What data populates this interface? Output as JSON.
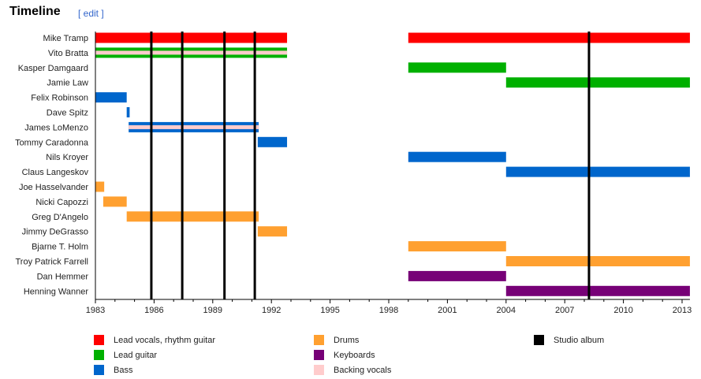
{
  "section": {
    "title": "Timeline",
    "edit_label": "[ edit ]"
  },
  "chart_data": {
    "type": "timeline",
    "xlim": [
      1983,
      2013.4
    ],
    "xticks": [
      1983,
      1986,
      1989,
      1992,
      1995,
      1998,
      2001,
      2004,
      2007,
      2010,
      2013
    ],
    "roles": {
      "vocals": {
        "label": "Lead vocals, rhythm guitar",
        "color": "#ff0000"
      },
      "guitar": {
        "label": "Lead guitar",
        "color": "#00b000"
      },
      "bass": {
        "label": "Bass",
        "color": "#0066cc"
      },
      "drums": {
        "label": "Drums",
        "color": "#ffa030"
      },
      "keys": {
        "label": "Keyboards",
        "color": "#770077"
      },
      "backing": {
        "label": "Backing vocals",
        "color": "#ffcccc"
      },
      "album": {
        "label": "Studio album",
        "color": "#000000"
      }
    },
    "members": [
      {
        "name": "Mike Tramp",
        "bars": [
          {
            "role": "vocals",
            "from": 1983,
            "to": 1992.8
          },
          {
            "role": "vocals",
            "from": 1999,
            "to": 2013.4
          }
        ]
      },
      {
        "name": "Vito Bratta",
        "bars": [
          {
            "role": "guitar",
            "from": 1983,
            "to": 1992.8,
            "secondary": "backing"
          }
        ]
      },
      {
        "name": "Kasper Damgaard",
        "bars": [
          {
            "role": "guitar",
            "from": 1999,
            "to": 2004
          }
        ]
      },
      {
        "name": "Jamie Law",
        "bars": [
          {
            "role": "guitar",
            "from": 2004,
            "to": 2013.4
          }
        ]
      },
      {
        "name": "Felix Robinson",
        "bars": [
          {
            "role": "bass",
            "from": 1983,
            "to": 1984.6
          }
        ]
      },
      {
        "name": "Dave Spitz",
        "bars": [
          {
            "role": "bass",
            "from": 1984.6,
            "to": 1984.75
          }
        ]
      },
      {
        "name": "James LoMenzo",
        "bars": [
          {
            "role": "bass",
            "from": 1984.7,
            "to": 1991.35,
            "secondary": "backing"
          }
        ]
      },
      {
        "name": "Tommy Caradonna",
        "bars": [
          {
            "role": "bass",
            "from": 1991.3,
            "to": 1992.8
          }
        ]
      },
      {
        "name": "Nils Kroyer",
        "bars": [
          {
            "role": "bass",
            "from": 1999,
            "to": 2004
          }
        ]
      },
      {
        "name": "Claus Langeskov",
        "bars": [
          {
            "role": "bass",
            "from": 2004,
            "to": 2013.4
          }
        ]
      },
      {
        "name": "Joe Hasselvander",
        "bars": [
          {
            "role": "drums",
            "from": 1983,
            "to": 1983.45
          }
        ]
      },
      {
        "name": "Nicki Capozzi",
        "bars": [
          {
            "role": "drums",
            "from": 1983.4,
            "to": 1984.6
          }
        ]
      },
      {
        "name": "Greg D'Angelo",
        "bars": [
          {
            "role": "drums",
            "from": 1984.6,
            "to": 1991.35
          }
        ]
      },
      {
        "name": "Jimmy DeGrasso",
        "bars": [
          {
            "role": "drums",
            "from": 1991.3,
            "to": 1992.8
          }
        ]
      },
      {
        "name": "Bjarne T. Holm",
        "bars": [
          {
            "role": "drums",
            "from": 1999,
            "to": 2004
          }
        ]
      },
      {
        "name": "Troy Patrick Farrell",
        "bars": [
          {
            "role": "drums",
            "from": 2004,
            "to": 2013.4
          }
        ]
      },
      {
        "name": "Dan Hemmer",
        "bars": [
          {
            "role": "keys",
            "from": 1999,
            "to": 2004
          }
        ]
      },
      {
        "name": "Henning Wanner",
        "bars": [
          {
            "role": "keys",
            "from": 2004,
            "to": 2013.4
          }
        ]
      }
    ],
    "albums": [
      1985.86,
      1987.44,
      1989.6,
      1991.15,
      2008.24
    ]
  }
}
